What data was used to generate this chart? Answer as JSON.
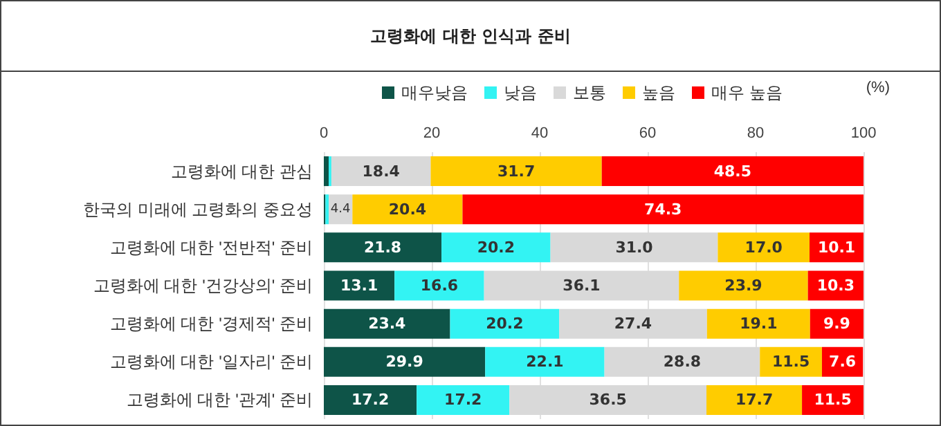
{
  "chart_data": {
    "type": "bar",
    "orientation": "horizontal",
    "stacked": true,
    "title": "고령화에 대한 인식과 준비",
    "categories": [
      "고령화에 대한 관심",
      "한국의 미래에 고령화의 중요성",
      "고령화에 대한 '전반적' 준비",
      "고령화에 대한 '건강상의' 준비",
      "고령화에 대한 '경제적' 준비",
      "고령화에 대한 '일자리' 준비",
      "고령화에 대한 '관계' 준비"
    ],
    "series": [
      {
        "name": "매우낮음",
        "color": "#0e5448",
        "values": [
          0.9,
          0.3,
          21.8,
          13.1,
          23.4,
          29.9,
          17.2
        ],
        "value_labels": [
          null,
          null,
          "21.8",
          "13.1",
          "23.4",
          "29.9",
          "17.2"
        ]
      },
      {
        "name": "낮음",
        "color": "#33f3f3",
        "values": [
          0.5,
          0.6,
          20.2,
          16.6,
          20.2,
          22.1,
          17.2
        ],
        "value_labels": [
          null,
          null,
          "20.2",
          "16.6",
          "20.2",
          "22.1",
          "17.2"
        ]
      },
      {
        "name": "보통",
        "color": "#d9d9d9",
        "values": [
          18.4,
          4.4,
          31.0,
          36.1,
          27.4,
          28.8,
          36.5
        ],
        "value_labels": [
          "18.4",
          "4.4",
          "31.0",
          "36.1",
          "27.4",
          "28.8",
          "36.5"
        ]
      },
      {
        "name": "높음",
        "color": "#ffcc00",
        "values": [
          31.7,
          20.4,
          17.0,
          23.9,
          19.1,
          11.5,
          17.7
        ],
        "value_labels": [
          "31.7",
          "20.4",
          "17.0",
          "23.9",
          "19.1",
          "11.5",
          "17.7"
        ]
      },
      {
        "name": "매우 높음",
        "color": "#ff0000",
        "values": [
          48.5,
          74.3,
          10.1,
          10.3,
          9.9,
          7.6,
          11.5
        ],
        "value_labels": [
          "48.5",
          "74.3",
          "10.1",
          "10.3",
          "9.9",
          "7.6",
          "11.5"
        ]
      }
    ],
    "xlim": [
      0,
      100
    ],
    "xticks": [
      0,
      20,
      40,
      60,
      80,
      100
    ],
    "grid": "x",
    "legend": "top",
    "annotations": [
      "(%)"
    ]
  }
}
